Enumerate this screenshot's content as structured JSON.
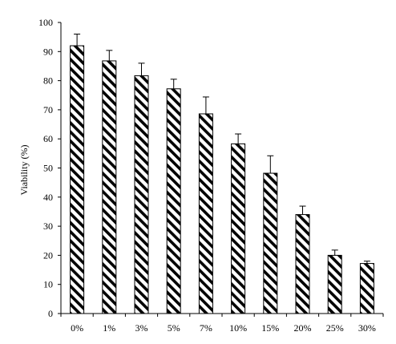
{
  "chart_data": {
    "type": "bar",
    "title": "",
    "xlabel": "",
    "ylabel": "Viability (%)",
    "ylim": [
      0,
      100
    ],
    "yticks": [
      0,
      10,
      20,
      30,
      40,
      50,
      60,
      70,
      80,
      90,
      100
    ],
    "ytick_labels": [
      "0",
      "10",
      "20",
      "30",
      "40",
      "50",
      "60",
      "70",
      "80",
      "90",
      "100"
    ],
    "categories": [
      "0%",
      "1%",
      "3%",
      "5%",
      "7%",
      "10%",
      "15%",
      "20%",
      "25%",
      "30%"
    ],
    "values": [
      92,
      86.8,
      81.7,
      77.2,
      68.6,
      58.3,
      48.2,
      34,
      20,
      17.2
    ],
    "error_upper": [
      4,
      3.6,
      4.3,
      3.3,
      5.8,
      3.4,
      6,
      2.9,
      1.8,
      0.8
    ],
    "grid": false,
    "bar_fill": "diagonal-stripe",
    "colors": {
      "stripe": "#000000",
      "background": "#ffffff",
      "axis": "#000000"
    }
  }
}
